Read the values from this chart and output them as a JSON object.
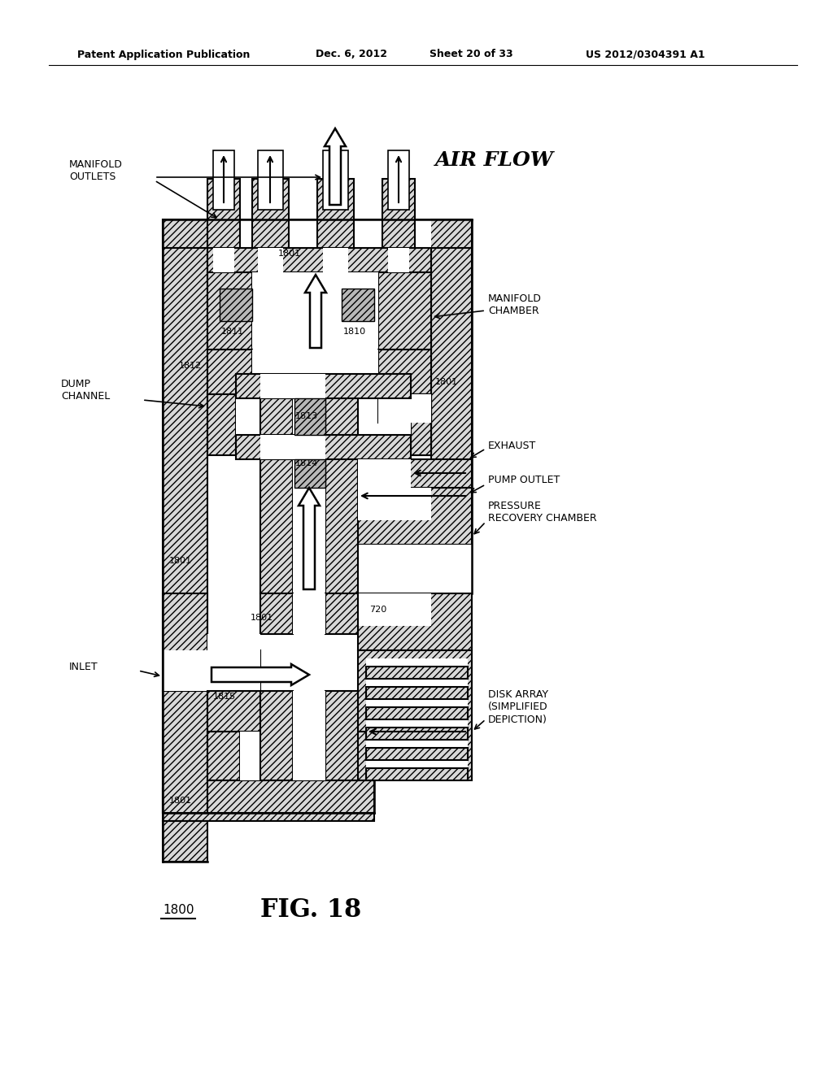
{
  "bg_color": "#ffffff",
  "header_left": "Patent Application Publication",
  "header_date": "Dec. 6, 2012",
  "header_sheet": "Sheet 20 of 33",
  "header_patent": "US 2012/0304391 A1",
  "fig_label": "1800",
  "fig_number": "FIG. 18",
  "airflow_label": "AIR FLOW",
  "label_manifold_outlets": "MANIFOLD\nOUTLETS",
  "label_manifold_chamber": "MANIFOLD\nCHAMBER",
  "label_dump_channel": "DUMP\nCHANNEL",
  "label_exhaust": "EXHAUST",
  "label_pump_outlet": "PUMP OUTLET",
  "label_pressure_recovery": "PRESSURE\nRECOVERY CHAMBER",
  "label_inlet": "INLET",
  "label_disk_array": "DISK ARRAY\n(SIMPLIFIED\nDEPICTION)",
  "n1801": "1801",
  "n1810": "1810",
  "n1811": "1811",
  "n1812": "1812",
  "n1813": "1813",
  "n1814": "1814",
  "n1815": "1815",
  "n720": "720"
}
